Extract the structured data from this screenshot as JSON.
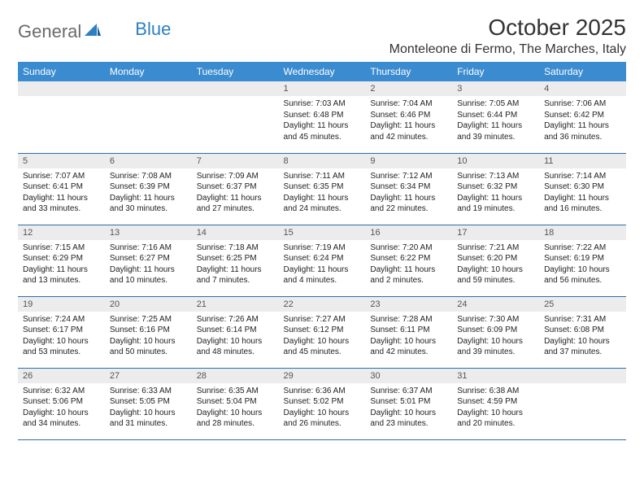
{
  "brand": {
    "part1": "General",
    "part2": "Blue"
  },
  "title": "October 2025",
  "location": "Monteleone di Fermo, The Marches, Italy",
  "colors": {
    "header_bg": "#3b8bd0",
    "header_text": "#ffffff",
    "daynum_bg": "#ececec",
    "rule": "#2d6ea8",
    "logo_gray": "#6a6a6a",
    "logo_blue": "#2d7fc1"
  },
  "weekdays": [
    "Sunday",
    "Monday",
    "Tuesday",
    "Wednesday",
    "Thursday",
    "Friday",
    "Saturday"
  ],
  "first_weekday_index": 3,
  "days": [
    {
      "n": 1,
      "sunrise": "7:03 AM",
      "sunset": "6:48 PM",
      "daylight": "11 hours and 45 minutes."
    },
    {
      "n": 2,
      "sunrise": "7:04 AM",
      "sunset": "6:46 PM",
      "daylight": "11 hours and 42 minutes."
    },
    {
      "n": 3,
      "sunrise": "7:05 AM",
      "sunset": "6:44 PM",
      "daylight": "11 hours and 39 minutes."
    },
    {
      "n": 4,
      "sunrise": "7:06 AM",
      "sunset": "6:42 PM",
      "daylight": "11 hours and 36 minutes."
    },
    {
      "n": 5,
      "sunrise": "7:07 AM",
      "sunset": "6:41 PM",
      "daylight": "11 hours and 33 minutes."
    },
    {
      "n": 6,
      "sunrise": "7:08 AM",
      "sunset": "6:39 PM",
      "daylight": "11 hours and 30 minutes."
    },
    {
      "n": 7,
      "sunrise": "7:09 AM",
      "sunset": "6:37 PM",
      "daylight": "11 hours and 27 minutes."
    },
    {
      "n": 8,
      "sunrise": "7:11 AM",
      "sunset": "6:35 PM",
      "daylight": "11 hours and 24 minutes."
    },
    {
      "n": 9,
      "sunrise": "7:12 AM",
      "sunset": "6:34 PM",
      "daylight": "11 hours and 22 minutes."
    },
    {
      "n": 10,
      "sunrise": "7:13 AM",
      "sunset": "6:32 PM",
      "daylight": "11 hours and 19 minutes."
    },
    {
      "n": 11,
      "sunrise": "7:14 AM",
      "sunset": "6:30 PM",
      "daylight": "11 hours and 16 minutes."
    },
    {
      "n": 12,
      "sunrise": "7:15 AM",
      "sunset": "6:29 PM",
      "daylight": "11 hours and 13 minutes."
    },
    {
      "n": 13,
      "sunrise": "7:16 AM",
      "sunset": "6:27 PM",
      "daylight": "11 hours and 10 minutes."
    },
    {
      "n": 14,
      "sunrise": "7:18 AM",
      "sunset": "6:25 PM",
      "daylight": "11 hours and 7 minutes."
    },
    {
      "n": 15,
      "sunrise": "7:19 AM",
      "sunset": "6:24 PM",
      "daylight": "11 hours and 4 minutes."
    },
    {
      "n": 16,
      "sunrise": "7:20 AM",
      "sunset": "6:22 PM",
      "daylight": "11 hours and 2 minutes."
    },
    {
      "n": 17,
      "sunrise": "7:21 AM",
      "sunset": "6:20 PM",
      "daylight": "10 hours and 59 minutes."
    },
    {
      "n": 18,
      "sunrise": "7:22 AM",
      "sunset": "6:19 PM",
      "daylight": "10 hours and 56 minutes."
    },
    {
      "n": 19,
      "sunrise": "7:24 AM",
      "sunset": "6:17 PM",
      "daylight": "10 hours and 53 minutes."
    },
    {
      "n": 20,
      "sunrise": "7:25 AM",
      "sunset": "6:16 PM",
      "daylight": "10 hours and 50 minutes."
    },
    {
      "n": 21,
      "sunrise": "7:26 AM",
      "sunset": "6:14 PM",
      "daylight": "10 hours and 48 minutes."
    },
    {
      "n": 22,
      "sunrise": "7:27 AM",
      "sunset": "6:12 PM",
      "daylight": "10 hours and 45 minutes."
    },
    {
      "n": 23,
      "sunrise": "7:28 AM",
      "sunset": "6:11 PM",
      "daylight": "10 hours and 42 minutes."
    },
    {
      "n": 24,
      "sunrise": "7:30 AM",
      "sunset": "6:09 PM",
      "daylight": "10 hours and 39 minutes."
    },
    {
      "n": 25,
      "sunrise": "7:31 AM",
      "sunset": "6:08 PM",
      "daylight": "10 hours and 37 minutes."
    },
    {
      "n": 26,
      "sunrise": "6:32 AM",
      "sunset": "5:06 PM",
      "daylight": "10 hours and 34 minutes."
    },
    {
      "n": 27,
      "sunrise": "6:33 AM",
      "sunset": "5:05 PM",
      "daylight": "10 hours and 31 minutes."
    },
    {
      "n": 28,
      "sunrise": "6:35 AM",
      "sunset": "5:04 PM",
      "daylight": "10 hours and 28 minutes."
    },
    {
      "n": 29,
      "sunrise": "6:36 AM",
      "sunset": "5:02 PM",
      "daylight": "10 hours and 26 minutes."
    },
    {
      "n": 30,
      "sunrise": "6:37 AM",
      "sunset": "5:01 PM",
      "daylight": "10 hours and 23 minutes."
    },
    {
      "n": 31,
      "sunrise": "6:38 AM",
      "sunset": "4:59 PM",
      "daylight": "10 hours and 20 minutes."
    }
  ],
  "labels": {
    "sunrise": "Sunrise:",
    "sunset": "Sunset:",
    "daylight": "Daylight:"
  }
}
